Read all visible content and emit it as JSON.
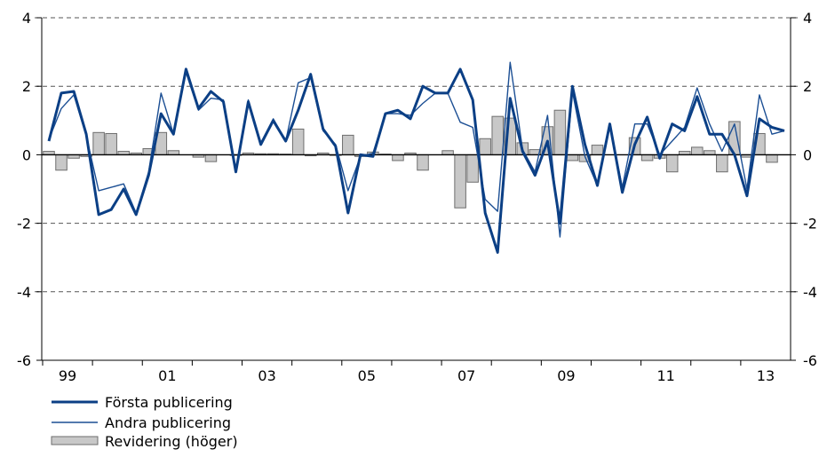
{
  "chart_data": {
    "type": "line",
    "title": "",
    "xlabel": "",
    "ylabel": "",
    "ylim": [
      -6,
      4
    ],
    "ylim_right": [
      -6,
      4
    ],
    "y_ticks": [
      "4",
      "2",
      "0",
      "-2",
      "-4",
      "-6"
    ],
    "y_ticks_right": [
      "4",
      "2",
      "0",
      "-2",
      "-4",
      "-6"
    ],
    "x_tick_labels": [
      "99",
      "01",
      "03",
      "05",
      "07",
      "09",
      "11",
      "13"
    ],
    "grid": "horizontal dashed",
    "legend_position": "bottom-left",
    "colors": {
      "first": "#0b3f85",
      "second": "#1c4f94",
      "revision_fill": "#c8c8c8",
      "revision_stroke": "#6e6e6e"
    },
    "series": [
      {
        "name": "Första publicering",
        "type": "line",
        "axis": "left",
        "values": [
          0.4,
          1.8,
          1.85,
          0.6,
          -1.75,
          -1.6,
          -1.0,
          -1.75,
          -0.6,
          1.2,
          0.6,
          2.5,
          1.35,
          1.85,
          1.55,
          -0.5,
          1.55,
          0.3,
          1.0,
          0.4,
          1.3,
          2.35,
          0.75,
          0.25,
          -1.7,
          0.0,
          -0.05,
          1.2,
          1.3,
          1.05,
          2.0,
          1.8,
          1.8,
          2.5,
          1.6,
          -1.7,
          -2.85,
          1.65,
          0.1,
          -0.6,
          0.4,
          -2.0,
          2.0,
          0.3,
          -0.9,
          0.9,
          -1.1,
          0.3,
          1.1,
          -0.1,
          0.9,
          0.7,
          1.7,
          0.6,
          0.6,
          0.0,
          -1.2,
          1.05,
          0.8,
          0.7
        ]
      },
      {
        "name": "Andra publicering",
        "type": "line",
        "axis": "left",
        "values": [
          0.45,
          1.35,
          1.75,
          0.55,
          -1.05,
          -0.95,
          -0.85,
          -1.7,
          -0.5,
          1.8,
          0.6,
          2.4,
          1.3,
          1.65,
          1.6,
          -0.5,
          1.6,
          0.35,
          1.05,
          0.4,
          2.1,
          2.25,
          0.7,
          0.3,
          -1.05,
          -0.05,
          0.05,
          1.2,
          1.2,
          1.15,
          1.5,
          1.8,
          1.8,
          0.95,
          0.8,
          -1.3,
          -1.65,
          2.7,
          0.15,
          -0.5,
          1.15,
          -2.4,
          1.85,
          -0.05,
          -0.9,
          0.85,
          -0.95,
          0.9,
          0.9,
          0.0,
          0.4,
          0.8,
          1.95,
          0.9,
          0.1,
          0.9,
          -1.0,
          1.75,
          0.6,
          0.7
        ]
      },
      {
        "name": "Revidering (höger)",
        "type": "bar",
        "axis": "right",
        "values": [
          0.1,
          -0.45,
          -0.1,
          -0.05,
          0.65,
          0.62,
          0.1,
          0.05,
          0.18,
          0.65,
          0.12,
          0.0,
          -0.07,
          -0.2,
          0.0,
          -0.02,
          0.05,
          0.03,
          0.03,
          0.02,
          0.75,
          -0.03,
          0.05,
          -0.02,
          0.57,
          -0.05,
          0.08,
          0.02,
          -0.17,
          0.05,
          -0.45,
          0.0,
          0.12,
          -1.55,
          -0.8,
          0.47,
          1.12,
          1.07,
          0.35,
          0.15,
          0.82,
          1.3,
          -0.17,
          -0.2,
          0.28,
          0.0,
          0.0,
          0.5,
          -0.17,
          -0.1,
          -0.5,
          0.1,
          0.22,
          0.12,
          -0.5,
          0.97,
          -0.07,
          0.62,
          -0.22,
          0.0
        ]
      }
    ]
  }
}
